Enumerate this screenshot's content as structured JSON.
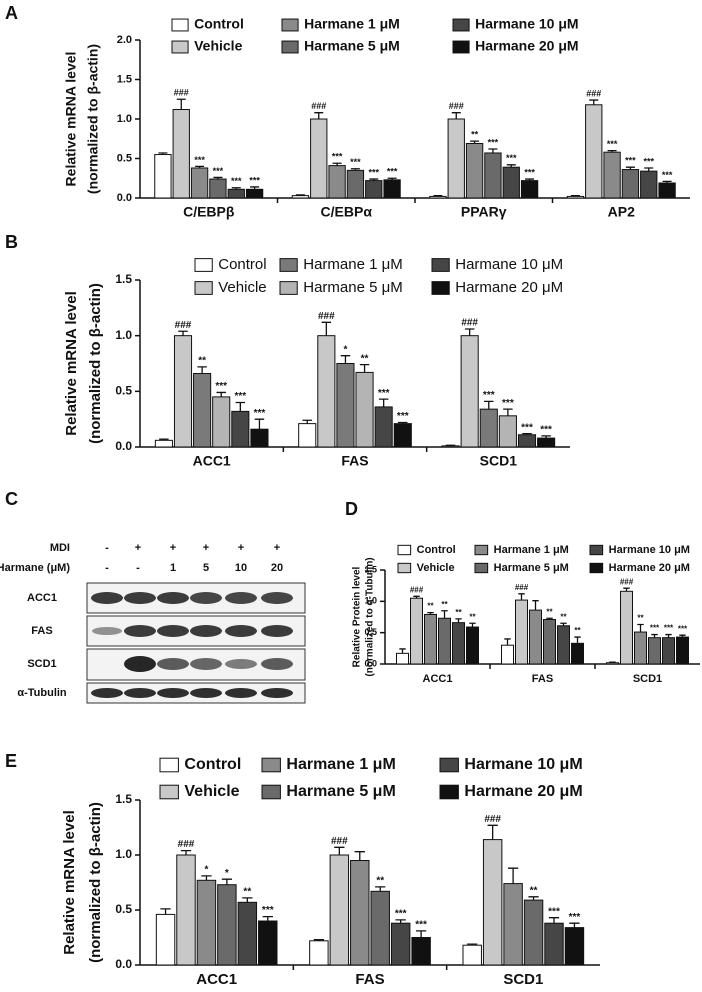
{
  "chart_data": [
    {
      "type": "bar",
      "panel": "A",
      "ylabel": [
        "Relative mRNA level",
        "(normalized to β-actin)"
      ],
      "categories": [
        "C/EBPβ",
        "C/EBPα",
        "PPARγ",
        "AP2"
      ],
      "ylim": [
        0,
        2
      ],
      "yticks": [
        {
          "value": 0,
          "label": "0.0"
        },
        0.5,
        {
          "value": 1,
          "label": "1.0"
        },
        1.5,
        {
          "value": 2,
          "label": "2.0"
        }
      ],
      "series": [
        {
          "name": "Control",
          "color": "#ffffff",
          "values": [
            0.55,
            0.03,
            0.02,
            0.02
          ],
          "errors": [
            0.02,
            0.01,
            0.01,
            0.01
          ],
          "annotations": [
            null,
            null,
            null,
            null
          ]
        },
        {
          "name": "Vehicle",
          "color": "#c8c8c8",
          "values": [
            1.12,
            1.0,
            1.0,
            1.18
          ],
          "errors": [
            0.13,
            0.08,
            0.08,
            0.06
          ],
          "annotations": [
            "###",
            "###",
            "###",
            "###"
          ]
        },
        {
          "name": "Harmane 1 μM",
          "color": "#8a8a8a",
          "values": [
            0.38,
            0.41,
            0.69,
            0.58
          ],
          "errors": [
            0.02,
            0.03,
            0.03,
            0.02
          ],
          "annotations": [
            "***",
            "***",
            "**",
            "***"
          ]
        },
        {
          "name": "Harmane 5 μM",
          "color": "#6a6a6a",
          "values": [
            0.24,
            0.35,
            0.57,
            0.36
          ],
          "errors": [
            0.02,
            0.02,
            0.05,
            0.03
          ],
          "annotations": [
            "***",
            "***",
            "***",
            "***"
          ]
        },
        {
          "name": "Harmane 10 μM",
          "color": "#464646",
          "values": [
            0.11,
            0.22,
            0.39,
            0.34
          ],
          "errors": [
            0.02,
            0.02,
            0.03,
            0.04
          ],
          "annotations": [
            "***",
            "***",
            "***",
            "***"
          ]
        },
        {
          "name": "Harmane 20 μM",
          "color": "#111111",
          "values": [
            0.11,
            0.23,
            0.22,
            0.19
          ],
          "errors": [
            0.03,
            0.02,
            0.02,
            0.02
          ],
          "annotations": [
            "***",
            "***",
            "***",
            "***"
          ]
        }
      ]
    },
    {
      "type": "bar",
      "panel": "B",
      "ylabel": [
        "Relative mRNA level",
        "(normalized to β-actin)"
      ],
      "categories": [
        "ACC1",
        "FAS",
        "SCD1"
      ],
      "ylim": [
        0,
        1.5
      ],
      "yticks": [
        {
          "value": 0,
          "label": "0.0"
        },
        0.5,
        {
          "value": 1,
          "label": "1.0"
        },
        1.5
      ],
      "series": [
        {
          "name": "Control",
          "color": "#ffffff",
          "values": [
            0.06,
            0.21,
            0.01
          ],
          "errors": [
            0.01,
            0.03,
            0.005
          ],
          "annotations": [
            null,
            null,
            null
          ]
        },
        {
          "name": "Vehicle",
          "color": "#c8c8c8",
          "values": [
            1.0,
            1.0,
            1.0
          ],
          "errors": [
            0.04,
            0.12,
            0.06
          ],
          "annotations": [
            "###",
            "###",
            "###"
          ]
        },
        {
          "name": "Harmane 1 μM",
          "color": "#7a7a7a",
          "values": [
            0.66,
            0.75,
            0.34
          ],
          "errors": [
            0.06,
            0.07,
            0.07
          ],
          "annotations": [
            "**",
            "*",
            "***"
          ]
        },
        {
          "name": "Harmane 5 μM",
          "color": "#b4b4b4",
          "values": [
            0.45,
            0.67,
            0.28
          ],
          "errors": [
            0.04,
            0.07,
            0.06
          ],
          "annotations": [
            "***",
            "**",
            "***"
          ]
        },
        {
          "name": "Harmane 10 μM",
          "color": "#464646",
          "values": [
            0.32,
            0.36,
            0.11
          ],
          "errors": [
            0.08,
            0.07,
            0.01
          ],
          "annotations": [
            "***",
            "***",
            "***"
          ]
        },
        {
          "name": "Harmane 20 μM",
          "color": "#111111",
          "values": [
            0.16,
            0.21,
            0.08
          ],
          "errors": [
            0.09,
            0.01,
            0.02
          ],
          "annotations": [
            "***",
            "***",
            "***"
          ]
        }
      ]
    },
    {
      "type": "bar",
      "panel": "D",
      "ylabel": [
        "Relative Protein level",
        "(normalized to α-Tubulin)"
      ],
      "categories": [
        "ACC1",
        "FAS",
        "SCD1"
      ],
      "ylim": [
        0,
        1.5
      ],
      "yticks": [
        {
          "value": 0,
          "label": "0.0"
        },
        0.5,
        {
          "value": 1,
          "label": "1.0"
        },
        1.5
      ],
      "series": [
        {
          "name": "Control",
          "color": "#ffffff",
          "values": [
            0.17,
            0.3,
            0.02
          ],
          "errors": [
            0.07,
            0.1,
            0.01
          ],
          "annotations": [
            null,
            null,
            null
          ]
        },
        {
          "name": "Vehicle",
          "color": "#c8c8c8",
          "values": [
            1.05,
            1.02,
            1.16
          ],
          "errors": [
            0.03,
            0.1,
            0.05
          ],
          "annotations": [
            "###",
            "###",
            "###"
          ]
        },
        {
          "name": "Harmane 1 μM",
          "color": "#8a8a8a",
          "values": [
            0.79,
            0.86,
            0.51
          ],
          "errors": [
            0.03,
            0.15,
            0.12
          ],
          "annotations": [
            "**",
            null,
            "**"
          ]
        },
        {
          "name": "Harmane 5 μM",
          "color": "#6a6a6a",
          "values": [
            0.73,
            0.71,
            0.42
          ],
          "errors": [
            0.12,
            0.02,
            0.05
          ],
          "annotations": [
            "**",
            "**",
            "***"
          ]
        },
        {
          "name": "Harmane 10 μM",
          "color": "#464646",
          "values": [
            0.66,
            0.61,
            0.42
          ],
          "errors": [
            0.06,
            0.04,
            0.05
          ],
          "annotations": [
            "**",
            "**",
            "***"
          ]
        },
        {
          "name": "Harmane 20 μM",
          "color": "#111111",
          "values": [
            0.59,
            0.33,
            0.43
          ],
          "errors": [
            0.06,
            0.1,
            0.03
          ],
          "annotations": [
            "**",
            "**",
            "***"
          ]
        }
      ]
    },
    {
      "type": "bar",
      "panel": "E",
      "ylabel": [
        "Relative mRNA level",
        "(normalized to β-actin)"
      ],
      "categories": [
        "ACC1",
        "FAS",
        "SCD1"
      ],
      "ylim": [
        0,
        1.5
      ],
      "yticks": [
        {
          "value": 0,
          "label": "0.0"
        },
        0.5,
        {
          "value": 1,
          "label": "1.0"
        },
        1.5
      ],
      "series": [
        {
          "name": "Control",
          "color": "#ffffff",
          "values": [
            0.46,
            0.22,
            0.18
          ],
          "errors": [
            0.05,
            0.01,
            0.01
          ],
          "annotations": [
            null,
            null,
            null
          ]
        },
        {
          "name": "Vehicle",
          "color": "#c8c8c8",
          "values": [
            1.0,
            1.0,
            1.14
          ],
          "errors": [
            0.04,
            0.07,
            0.13
          ],
          "annotations": [
            "###",
            "###",
            "###"
          ]
        },
        {
          "name": "Harmane 1 μM",
          "color": "#8a8a8a",
          "values": [
            0.77,
            0.95,
            0.74
          ],
          "errors": [
            0.04,
            0.08,
            0.14
          ],
          "annotations": [
            "*",
            null,
            null
          ]
        },
        {
          "name": "Harmane 5 μM",
          "color": "#6a6a6a",
          "values": [
            0.73,
            0.67,
            0.59
          ],
          "errors": [
            0.05,
            0.04,
            0.03
          ],
          "annotations": [
            "*",
            "**",
            "**"
          ]
        },
        {
          "name": "Harmane 10 μM",
          "color": "#464646",
          "values": [
            0.57,
            0.38,
            0.38
          ],
          "errors": [
            0.04,
            0.03,
            0.05
          ],
          "annotations": [
            "**",
            "***",
            "***"
          ]
        },
        {
          "name": "Harmane 20 μM",
          "color": "#111111",
          "values": [
            0.4,
            0.25,
            0.34
          ],
          "errors": [
            0.04,
            0.06,
            0.04
          ],
          "annotations": [
            "***",
            "***",
            "***"
          ]
        }
      ]
    }
  ],
  "blot": {
    "panel": "C",
    "treatments": [
      {
        "label": "MDI",
        "values": [
          "-",
          "+",
          "+",
          "+",
          "+",
          "+"
        ]
      },
      {
        "label": "Harmane (μM)",
        "values": [
          "-",
          "-",
          "1",
          "5",
          "10",
          "20"
        ]
      }
    ],
    "rows": [
      "ACC1",
      "FAS",
      "SCD1",
      "α-Tubulin"
    ]
  }
}
